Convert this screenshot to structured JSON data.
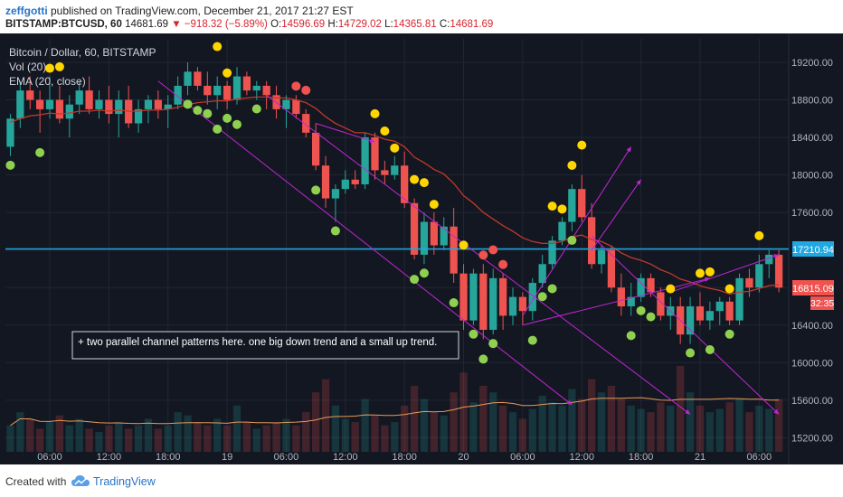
{
  "header": {
    "author": "zeffgotti",
    "published": "published on TradingView.com, December 21, 2017 21:27 EST",
    "symbol": "BITSTAMP:BTCUSD, 60",
    "price": "14681.69",
    "change": "▼ −918.32 (−5.89%)",
    "o_label": "O:",
    "o_value": "14596.69",
    "h_label": "H:",
    "h_value": "14729.02",
    "l_label": "L:",
    "l_value": "14365.81",
    "c_label": "C:",
    "c_value": "14681.69"
  },
  "legend": {
    "title": "Bitcoin / Dollar, 60, BITSTAMP",
    "vol": "Vol (20)",
    "ema": "EMA (20, close)"
  },
  "annotation": "+ two parallel channel patterns here. one big down trend and a small up trend.",
  "price_labels": {
    "hline": "17210.94",
    "last": "16815.09",
    "countdown": "32:35"
  },
  "footer": {
    "created": "Created with",
    "brand": "TradingView"
  },
  "colors": {
    "background": "#131722",
    "grid": "#222633",
    "up": "#26a69a",
    "down": "#ef5350",
    "ema": "#c0392b",
    "hline": "#20a8e0",
    "trend": "#c026d3",
    "dot_yellow": "#ffd600",
    "dot_green": "#8fd14f",
    "dot_red": "#ef5350",
    "vol_ma": "#e89b57"
  },
  "chart_data": {
    "type": "candlestick",
    "y_axis": {
      "ticks": [
        15200,
        15600,
        16000,
        16400,
        16800,
        17200,
        17600,
        18000,
        18400,
        18800,
        19200
      ],
      "range": [
        15050,
        19450
      ]
    },
    "x_axis": {
      "ticks": [
        {
          "label": "06:00",
          "t": 4
        },
        {
          "label": "12:00",
          "t": 10
        },
        {
          "label": "18:00",
          "t": 16
        },
        {
          "label": "19",
          "t": 22
        },
        {
          "label": "06:00",
          "t": 28
        },
        {
          "label": "12:00",
          "t": 34
        },
        {
          "label": "18:00",
          "t": 40
        },
        {
          "label": "20",
          "t": 46
        },
        {
          "label": "06:00",
          "t": 52
        },
        {
          "label": "12:00",
          "t": 58
        },
        {
          "label": "18:00",
          "t": 64
        },
        {
          "label": "21",
          "t": 70
        },
        {
          "label": "06:00",
          "t": 76
        }
      ]
    },
    "candles": [
      [
        18300,
        18650,
        18200,
        18600
      ],
      [
        18600,
        19000,
        18500,
        18900
      ],
      [
        18900,
        19050,
        18700,
        18800
      ],
      [
        18800,
        18900,
        18450,
        18700
      ],
      [
        18700,
        19050,
        18600,
        18800
      ],
      [
        18800,
        18950,
        18550,
        18600
      ],
      [
        18600,
        18850,
        18400,
        18750
      ],
      [
        18750,
        19000,
        18650,
        18900
      ],
      [
        18900,
        19050,
        18650,
        18700
      ],
      [
        18700,
        18900,
        18600,
        18800
      ],
      [
        18800,
        18950,
        18550,
        18650
      ],
      [
        18650,
        18900,
        18400,
        18800
      ],
      [
        18800,
        18950,
        18500,
        18550
      ],
      [
        18550,
        18800,
        18450,
        18700
      ],
      [
        18700,
        18850,
        18550,
        18800
      ],
      [
        18800,
        18900,
        18600,
        18700
      ],
      [
        18700,
        18850,
        18500,
        18750
      ],
      [
        18750,
        19050,
        18700,
        18950
      ],
      [
        18950,
        19200,
        18850,
        19100
      ],
      [
        19100,
        19150,
        18900,
        18950
      ],
      [
        18950,
        19100,
        18750,
        18850
      ],
      [
        18850,
        19050,
        18700,
        18950
      ],
      [
        18950,
        19000,
        18700,
        18800
      ],
      [
        18800,
        19150,
        18750,
        19050
      ],
      [
        19050,
        19100,
        18850,
        18900
      ],
      [
        18900,
        19000,
        18800,
        18950
      ],
      [
        18950,
        19000,
        18700,
        18850
      ],
      [
        18850,
        18950,
        18600,
        18700
      ],
      [
        18700,
        18850,
        18500,
        18800
      ],
      [
        18800,
        18850,
        18600,
        18650
      ],
      [
        18650,
        18700,
        18400,
        18450
      ],
      [
        18450,
        18550,
        18050,
        18100
      ],
      [
        18100,
        18200,
        17650,
        17750
      ],
      [
        17750,
        17900,
        17500,
        17850
      ],
      [
        17850,
        18050,
        17800,
        17950
      ],
      [
        17950,
        18050,
        17850,
        17900
      ],
      [
        17900,
        18450,
        17850,
        18400
      ],
      [
        18400,
        18450,
        17950,
        18050
      ],
      [
        18050,
        18150,
        17900,
        18000
      ],
      [
        18000,
        18200,
        17950,
        18100
      ],
      [
        18100,
        18250,
        17650,
        17700
      ],
      [
        17700,
        17750,
        17100,
        17150
      ],
      [
        17150,
        17600,
        17050,
        17500
      ],
      [
        17500,
        17600,
        17150,
        17250
      ],
      [
        17250,
        17550,
        17200,
        17450
      ],
      [
        17450,
        17650,
        16850,
        16950
      ],
      [
        16950,
        17050,
        16350,
        16450
      ],
      [
        16450,
        17000,
        16400,
        16950
      ],
      [
        16950,
        17050,
        16250,
        16350
      ],
      [
        16350,
        17000,
        16300,
        16900
      ],
      [
        16900,
        16950,
        16350,
        16500
      ],
      [
        16500,
        16800,
        16400,
        16700
      ],
      [
        16700,
        16750,
        16400,
        16550
      ],
      [
        16550,
        16900,
        16450,
        16850
      ],
      [
        16850,
        17150,
        16800,
        17050
      ],
      [
        17050,
        17350,
        17000,
        17300
      ],
      [
        17300,
        17550,
        17250,
        17500
      ],
      [
        17500,
        17900,
        17400,
        17850
      ],
      [
        17850,
        18000,
        17500,
        17550
      ],
      [
        17550,
        17700,
        17000,
        17050
      ],
      [
        17050,
        17250,
        16950,
        17200
      ],
      [
        17200,
        17250,
        16750,
        16800
      ],
      [
        16800,
        16950,
        16500,
        16600
      ],
      [
        16600,
        16850,
        16500,
        16700
      ],
      [
        16700,
        16950,
        16650,
        16900
      ],
      [
        16900,
        16950,
        16700,
        16750
      ],
      [
        16750,
        16800,
        16450,
        16500
      ],
      [
        16500,
        16700,
        16350,
        16600
      ],
      [
        16600,
        16700,
        16200,
        16300
      ],
      [
        16300,
        16700,
        16200,
        16600
      ],
      [
        16600,
        16750,
        16400,
        16450
      ],
      [
        16450,
        16650,
        16350,
        16550
      ],
      [
        16550,
        16700,
        16400,
        16650
      ],
      [
        16650,
        16700,
        16400,
        16450
      ],
      [
        16450,
        16950,
        16400,
        16900
      ],
      [
        16900,
        17000,
        16700,
        16800
      ],
      [
        16800,
        17150,
        16750,
        17050
      ],
      [
        17050,
        17200,
        16900,
        17150
      ],
      [
        17150,
        17200,
        16750,
        16800
      ]
    ],
    "ema": [
      18560,
      18600,
      18630,
      18640,
      18660,
      18650,
      18660,
      18680,
      18680,
      18690,
      18680,
      18690,
      18680,
      18680,
      18690,
      18690,
      18700,
      18720,
      18750,
      18770,
      18780,
      18790,
      18790,
      18810,
      18820,
      18830,
      18830,
      18820,
      18820,
      18800,
      18770,
      18710,
      18620,
      18550,
      18500,
      18450,
      18450,
      18420,
      18380,
      18360,
      18300,
      18190,
      18130,
      18060,
      18010,
      17910,
      17780,
      17700,
      17600,
      17530,
      17460,
      17400,
      17330,
      17290,
      17270,
      17270,
      17290,
      17340,
      17360,
      17310,
      17290,
      17240,
      17170,
      17120,
      17090,
      17050,
      16990,
      16950,
      16890,
      16860,
      16820,
      16790,
      16770,
      16730,
      16750,
      16760,
      16790,
      16820,
      16830
    ],
    "volume": [
      8,
      12,
      10,
      7,
      9,
      11,
      8,
      10,
      7,
      6,
      8,
      9,
      7,
      8,
      10,
      7,
      8,
      12,
      11,
      9,
      8,
      10,
      8,
      14,
      9,
      7,
      8,
      9,
      10,
      8,
      12,
      18,
      22,
      14,
      10,
      9,
      16,
      11,
      8,
      9,
      14,
      20,
      16,
      12,
      11,
      18,
      24,
      15,
      20,
      18,
      14,
      12,
      10,
      13,
      17,
      15,
      14,
      19,
      16,
      22,
      18,
      20,
      16,
      14,
      13,
      12,
      15,
      14,
      26,
      18,
      14,
      12,
      13,
      15,
      16,
      12,
      14,
      13,
      16
    ]
  }
}
